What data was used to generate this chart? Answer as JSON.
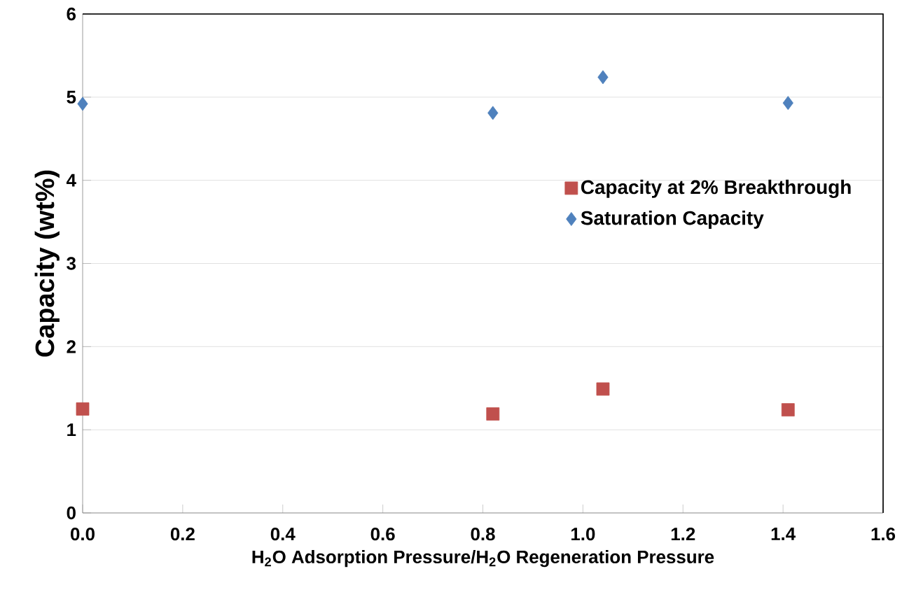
{
  "chart_data": {
    "type": "scatter",
    "xlabel": "H$_{2}$O Adsorption Pressure/H$_{2}$O Regeneration Pressure",
    "ylabel": "Capacity (wt%)",
    "x": [
      0,
      0.82,
      1.04,
      1.41
    ],
    "series": [
      {
        "name": "Capacity at 2% Breakthrough",
        "color": "#c0504d",
        "marker": "square",
        "values": [
          1.25,
          1.19,
          1.49,
          1.24
        ]
      },
      {
        "name": "Saturation Capacity",
        "color": "#4f81bd",
        "marker": "diamond",
        "values": [
          4.92,
          4.81,
          5.24,
          4.93
        ]
      }
    ],
    "xlim": [
      0,
      1.6
    ],
    "ylim": [
      0,
      6
    ],
    "xticks": [
      {
        "value": 0,
        "label": "0.0"
      },
      0.2,
      0.4,
      0.6,
      0.8,
      {
        "value": 1,
        "label": "1.0"
      },
      1.2,
      1.4,
      1.6
    ],
    "yticks": [
      0,
      1,
      2,
      3,
      4,
      5,
      6
    ],
    "grid": "y",
    "legend": "right"
  }
}
